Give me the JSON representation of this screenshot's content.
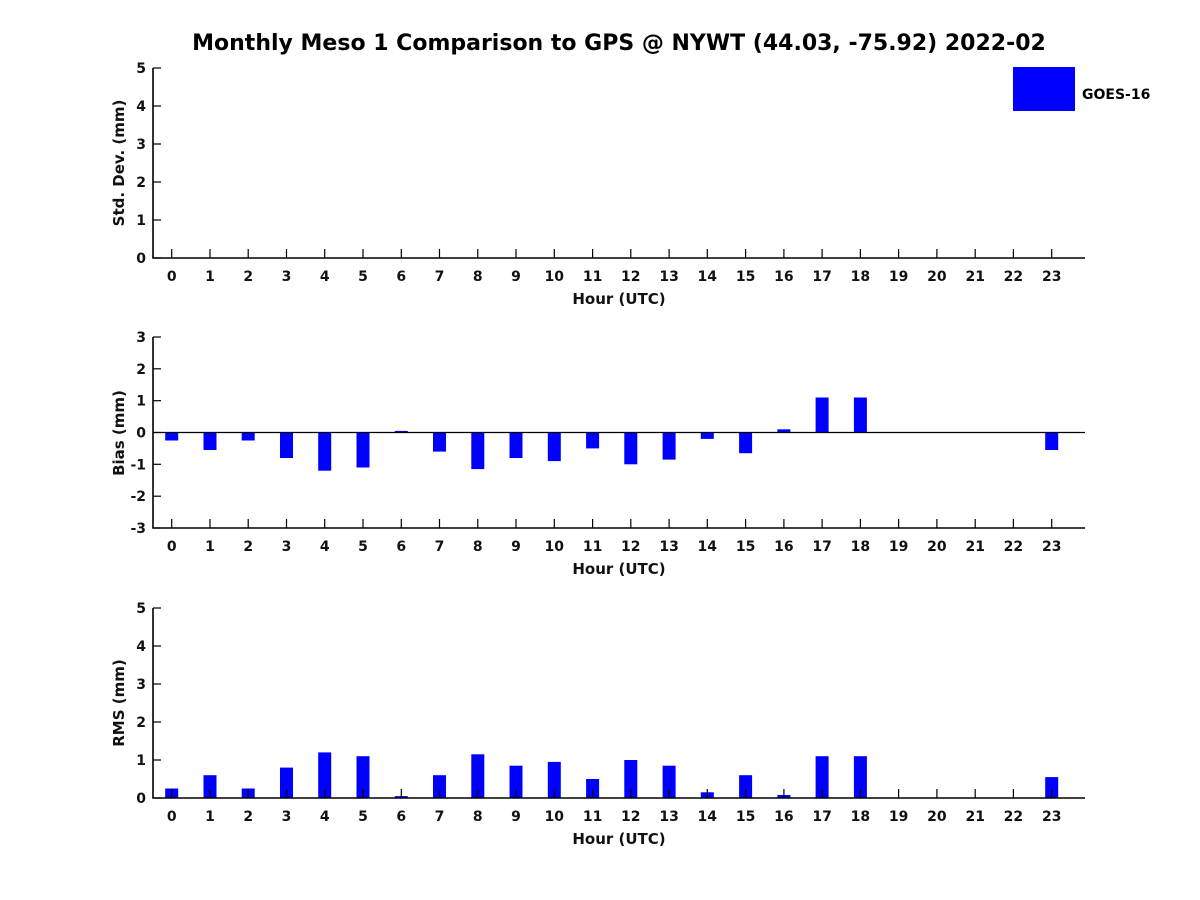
{
  "title": "Monthly Meso 1 Comparison to GPS @ NYWT (44.03, -75.92) 2022-02",
  "legend": {
    "label": "GOES-16",
    "color": "#0000ff"
  },
  "colors": {
    "bar": "#0000ff",
    "axis": "#000000",
    "text": "#111111",
    "background": "#ffffff"
  },
  "chart_data": {
    "type": "bar",
    "series_name": "GOES-16",
    "xlabel": "Hour (UTC)",
    "x": [
      0,
      1,
      2,
      3,
      4,
      5,
      6,
      7,
      8,
      9,
      10,
      11,
      12,
      13,
      14,
      15,
      16,
      17,
      18,
      19,
      20,
      21,
      22,
      23
    ],
    "subplots": [
      {
        "ylabel": "Std. Dev. (mm)",
        "ylim": [
          0,
          5
        ],
        "ytick_step": 1,
        "values": [
          0,
          0,
          0,
          0,
          0,
          0,
          0,
          0,
          0,
          0,
          0,
          0,
          0,
          0,
          0,
          0,
          0,
          0,
          0,
          0,
          0,
          0,
          0,
          0
        ]
      },
      {
        "ylabel": "Bias (mm)",
        "ylim": [
          -3,
          3
        ],
        "ytick_step": 1,
        "values": [
          -0.25,
          -0.55,
          -0.25,
          -0.8,
          -1.2,
          -1.1,
          0.05,
          -0.6,
          -1.15,
          -0.8,
          -0.9,
          -0.5,
          -1.0,
          -0.85,
          -0.2,
          -0.65,
          0.1,
          1.1,
          1.1,
          0,
          0,
          0,
          0,
          -0.55
        ]
      },
      {
        "ylabel": "RMS (mm)",
        "ylim": [
          0,
          5
        ],
        "ytick_step": 1,
        "values": [
          0.25,
          0.6,
          0.25,
          0.8,
          1.2,
          1.1,
          0.05,
          0.6,
          1.15,
          0.85,
          0.95,
          0.5,
          1.0,
          0.85,
          0.15,
          0.6,
          0.08,
          1.1,
          1.1,
          0,
          0,
          0,
          0,
          0.55
        ]
      }
    ]
  }
}
